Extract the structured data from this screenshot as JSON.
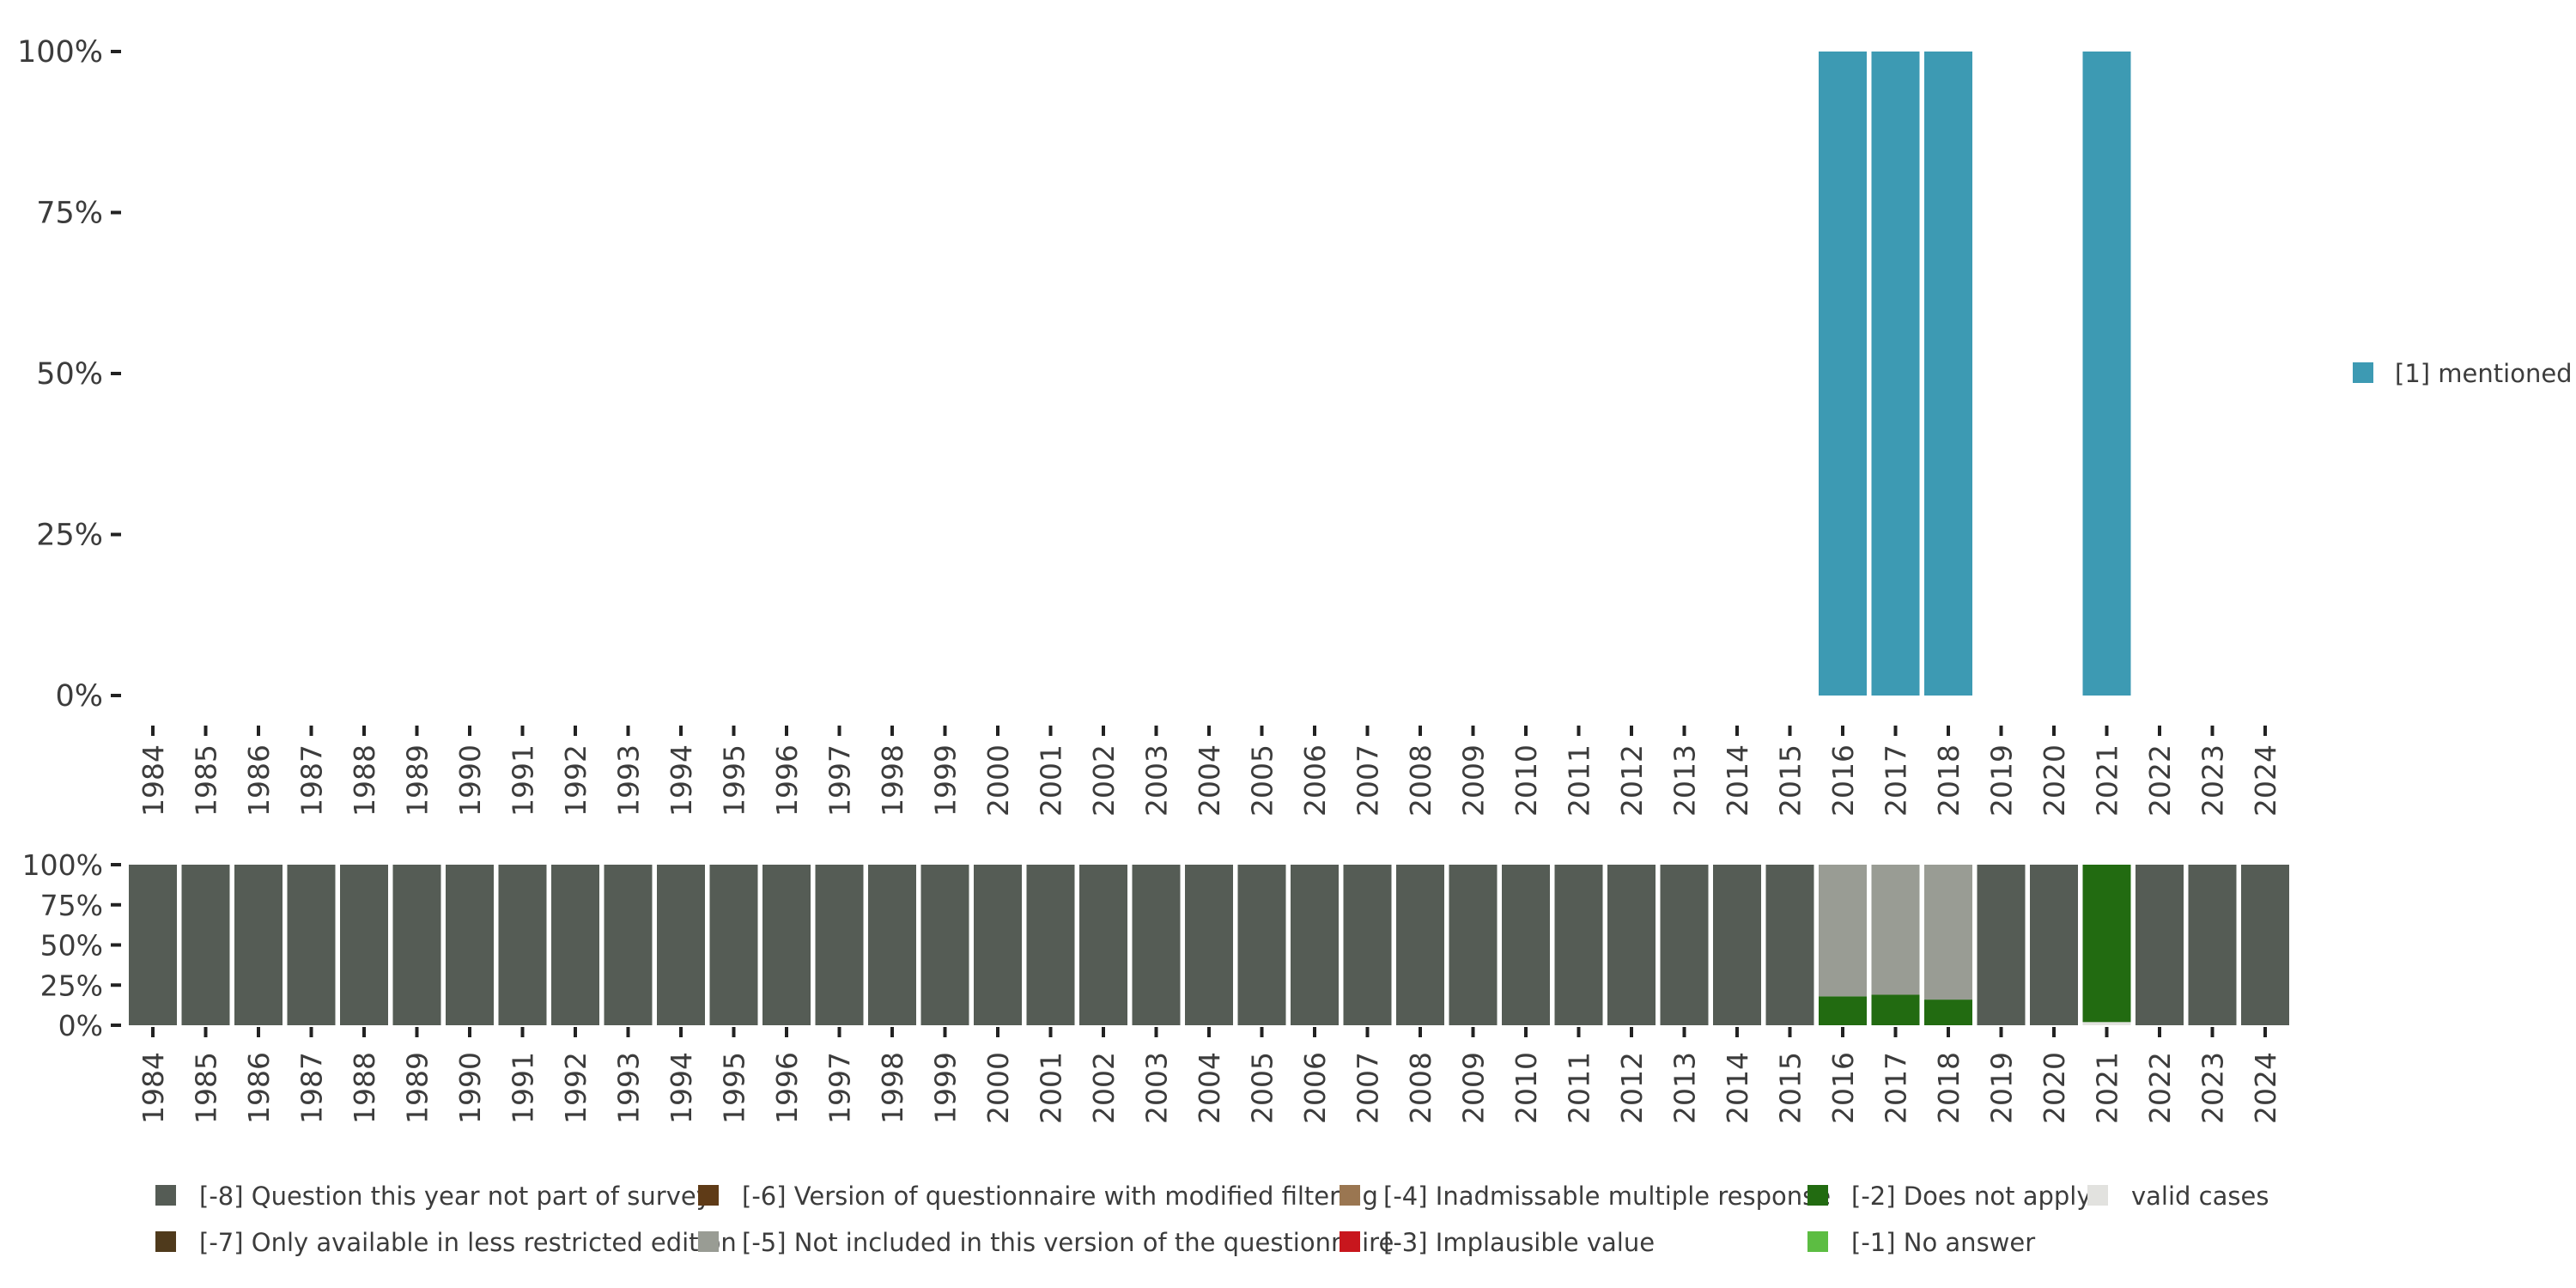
{
  "chart_data": [
    {
      "type": "bar",
      "stacked": true,
      "categories": [
        "1984",
        "1985",
        "1986",
        "1987",
        "1988",
        "1989",
        "1990",
        "1991",
        "1992",
        "1993",
        "1994",
        "1995",
        "1996",
        "1997",
        "1998",
        "1999",
        "2000",
        "2001",
        "2002",
        "2003",
        "2004",
        "2005",
        "2006",
        "2007",
        "2008",
        "2009",
        "2010",
        "2011",
        "2012",
        "2013",
        "2014",
        "2015",
        "2016",
        "2017",
        "2018",
        "2019",
        "2020",
        "2021",
        "2022",
        "2023",
        "2024"
      ],
      "ylim": [
        0,
        100
      ],
      "yticks": [
        "0%",
        "25%",
        "50%",
        "75%",
        "100%"
      ],
      "grid": false,
      "legend_position": "right",
      "series": [
        {
          "name": "[1] mentioned",
          "color": "#3d9ab3",
          "values": [
            0,
            0,
            0,
            0,
            0,
            0,
            0,
            0,
            0,
            0,
            0,
            0,
            0,
            0,
            0,
            0,
            0,
            0,
            0,
            0,
            0,
            0,
            0,
            0,
            0,
            0,
            0,
            0,
            0,
            0,
            0,
            0,
            100,
            100,
            100,
            0,
            0,
            100,
            0,
            0,
            0
          ]
        }
      ]
    },
    {
      "type": "bar",
      "stacked": true,
      "categories": [
        "1984",
        "1985",
        "1986",
        "1987",
        "1988",
        "1989",
        "1990",
        "1991",
        "1992",
        "1993",
        "1994",
        "1995",
        "1996",
        "1997",
        "1998",
        "1999",
        "2000",
        "2001",
        "2002",
        "2003",
        "2004",
        "2005",
        "2006",
        "2007",
        "2008",
        "2009",
        "2010",
        "2011",
        "2012",
        "2013",
        "2014",
        "2015",
        "2016",
        "2017",
        "2018",
        "2019",
        "2020",
        "2021",
        "2022",
        "2023",
        "2024"
      ],
      "ylim": [
        0,
        100
      ],
      "yticks": [
        "0%",
        "25%",
        "50%",
        "75%",
        "100%"
      ],
      "grid": false,
      "legend_position": "bottom",
      "series": [
        {
          "name": "valid cases",
          "color": "#e2e2df",
          "values": [
            0,
            0,
            0,
            0,
            0,
            0,
            0,
            0,
            0,
            0,
            0,
            0,
            0,
            0,
            0,
            0,
            0,
            0,
            0,
            0,
            0,
            0,
            0,
            0,
            0,
            0,
            0,
            0,
            0,
            0,
            0,
            0,
            0,
            0,
            0,
            0,
            0,
            2,
            0,
            0,
            0
          ]
        },
        {
          "name": "[-2] Does not apply",
          "color": "#226b11",
          "values": [
            0,
            0,
            0,
            0,
            0,
            0,
            0,
            0,
            0,
            0,
            0,
            0,
            0,
            0,
            0,
            0,
            0,
            0,
            0,
            0,
            0,
            0,
            0,
            0,
            0,
            0,
            0,
            0,
            0,
            0,
            0,
            0,
            18,
            19,
            16,
            0,
            0,
            98,
            0,
            0,
            0
          ]
        },
        {
          "name": "[-5] Not included in this version of the questionnaire",
          "color": "#999c94",
          "values": [
            0,
            0,
            0,
            0,
            0,
            0,
            0,
            0,
            0,
            0,
            0,
            0,
            0,
            0,
            0,
            0,
            0,
            0,
            0,
            0,
            0,
            0,
            0,
            0,
            0,
            0,
            0,
            0,
            0,
            0,
            0,
            0,
            82,
            81,
            84,
            0,
            0,
            0,
            0,
            0,
            0
          ]
        },
        {
          "name": "[-8] Question this year not part of survey",
          "color": "#555c55",
          "values": [
            100,
            100,
            100,
            100,
            100,
            100,
            100,
            100,
            100,
            100,
            100,
            100,
            100,
            100,
            100,
            100,
            100,
            100,
            100,
            100,
            100,
            100,
            100,
            100,
            100,
            100,
            100,
            100,
            100,
            100,
            100,
            100,
            0,
            0,
            0,
            100,
            100,
            0,
            100,
            100,
            100
          ]
        }
      ],
      "legend": [
        {
          "name": "[-8] Question this year not part of survey",
          "color": "#555c55"
        },
        {
          "name": "[-7] Only available in less restricted edition",
          "color": "#4f3a1c"
        },
        {
          "name": "[-6] Version of questionnaire with modified filtering",
          "color": "#5f3b17"
        },
        {
          "name": "[-5] Not included in this version of the questionnaire",
          "color": "#999c94"
        },
        {
          "name": "[-4] Inadmissable multiple response",
          "color": "#9a7651"
        },
        {
          "name": "[-3] Implausible value",
          "color": "#c8161d"
        },
        {
          "name": "[-2] Does not apply",
          "color": "#226b11"
        },
        {
          "name": "[-1] No answer",
          "color": "#5cbd42"
        },
        {
          "name": "valid cases",
          "color": "#e2e2df"
        }
      ]
    }
  ]
}
